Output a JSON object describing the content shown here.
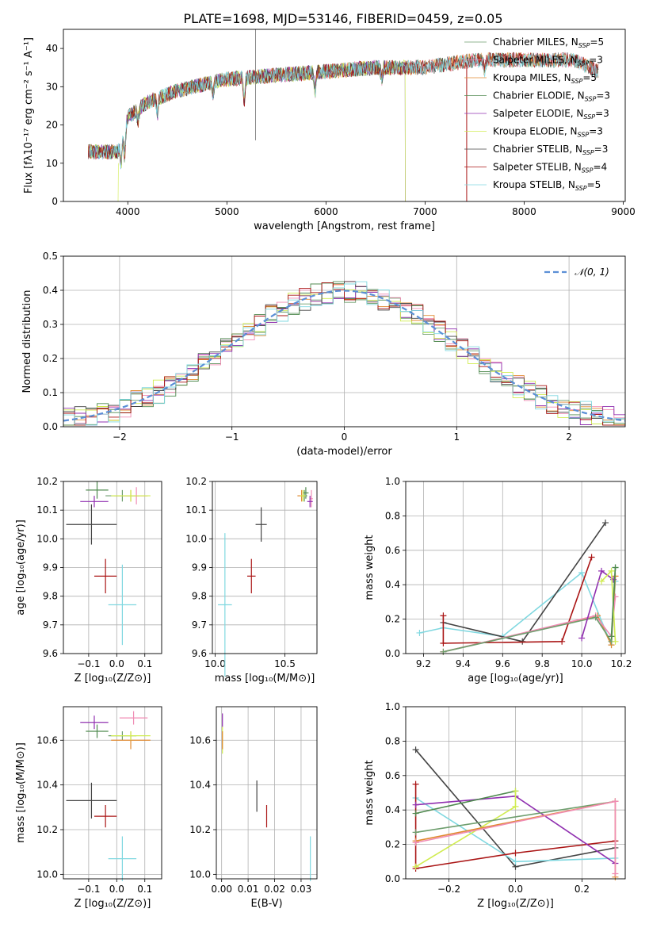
{
  "title": "PLATE=1698, MJD=53146, FIBERID=0459, z=0.05",
  "colors": {
    "chabrier_miles": "#6e9e6e",
    "salpeter_miles": "#f08cb4",
    "kroupa_miles": "#e08a30",
    "chabrier_elodie": "#4f8a4f",
    "salpeter_elodie": "#9030b0",
    "kroupa_elodie": "#d0ec50",
    "chabrier_stelib": "#444444",
    "salpeter_stelib": "#aa1515",
    "kroupa_stelib": "#80d8e0",
    "normal_curve": "#5b8fd6",
    "grid": "#b0b0b0"
  },
  "chart_data": [
    {
      "id": "spectrum",
      "type": "line",
      "xlabel": "wavelength [Angstrom, rest frame]",
      "ylabel": "Flux [fλ10⁻¹⁷ erg cm⁻² s⁻¹ A⁻¹]",
      "xlim": [
        3350,
        9020
      ],
      "ylim": [
        0,
        45
      ],
      "xticks": [
        4000,
        5000,
        6000,
        7000,
        8000,
        9000
      ],
      "yticks": [
        0,
        10,
        20,
        30,
        40
      ],
      "grid": false,
      "legend_position": "top-right",
      "legend": [
        {
          "label": "Chabrier MILES, N",
          "sub": "SSP",
          "tail": "=5",
          "color_key": "chabrier_miles"
        },
        {
          "label": "Salpeter MILES, N",
          "sub": "SSP",
          "tail": "=3",
          "color_key": "salpeter_miles"
        },
        {
          "label": "Kroupa MILES, N",
          "sub": "SSP",
          "tail": "=5",
          "color_key": "kroupa_miles"
        },
        {
          "label": "Chabrier ELODIE, N",
          "sub": "SSP",
          "tail": "=3",
          "color_key": "chabrier_elodie"
        },
        {
          "label": "Salpeter ELODIE, N",
          "sub": "SSP",
          "tail": "=3",
          "color_key": "salpeter_elodie"
        },
        {
          "label": "Kroupa ELODIE, N",
          "sub": "SSP",
          "tail": "=3",
          "color_key": "kroupa_elodie"
        },
        {
          "label": "Chabrier STELIB, N",
          "sub": "SSP",
          "tail": "=3",
          "color_key": "chabrier_stelib"
        },
        {
          "label": "Salpeter STELIB, N",
          "sub": "SSP",
          "tail": "=4",
          "color_key": "salpeter_stelib"
        },
        {
          "label": "Kroupa STELIB, N",
          "sub": "SSP",
          "tail": "=5",
          "color_key": "kroupa_stelib"
        }
      ],
      "continuum": [
        [
          3600,
          13
        ],
        [
          3800,
          13
        ],
        [
          3900,
          13
        ],
        [
          4000,
          22
        ],
        [
          4200,
          26
        ],
        [
          4500,
          29
        ],
        [
          5000,
          32
        ],
        [
          5500,
          33
        ],
        [
          6000,
          34
        ],
        [
          6500,
          35
        ],
        [
          7000,
          35
        ],
        [
          7500,
          37
        ],
        [
          8000,
          37
        ],
        [
          8500,
          37
        ],
        [
          8750,
          34
        ]
      ],
      "dips": [
        [
          3933,
          6
        ],
        [
          3968,
          7
        ],
        [
          4102,
          3
        ],
        [
          4300,
          4
        ],
        [
          4861,
          3
        ],
        [
          5175,
          6
        ],
        [
          5890,
          5
        ],
        [
          6563,
          3
        ],
        [
          7600,
          3
        ]
      ]
    },
    {
      "id": "residuals",
      "type": "histogram",
      "xlabel": "(data-model)/error",
      "ylabel": "Normed distribution",
      "xlim": [
        -2.5,
        2.5
      ],
      "ylim": [
        0,
        0.5
      ],
      "xticks": [
        -2,
        -1,
        0,
        1,
        2
      ],
      "yticks": [
        0.0,
        0.1,
        0.2,
        0.3,
        0.4,
        0.5
      ],
      "grid": true,
      "legend_position": "top-right",
      "legend_label": "𝒩(0, 1)",
      "bin_width": 0.1,
      "series_color_keys": [
        "chabrier_miles",
        "salpeter_miles",
        "kroupa_miles",
        "chabrier_elodie",
        "salpeter_elodie",
        "kroupa_elodie",
        "chabrier_stelib",
        "salpeter_stelib",
        "kroupa_stelib"
      ]
    },
    {
      "id": "age_vs_Z",
      "type": "scatter",
      "xlabel": "Z [log₁₀(Z/Z⊙)]",
      "ylabel": "age  [log₁₀(age/yr)]",
      "xlim": [
        -0.19,
        0.16
      ],
      "ylim": [
        9.6,
        10.2
      ],
      "xticks": [
        -0.1,
        0.0,
        0.1
      ],
      "yticks": [
        9.6,
        9.7,
        9.8,
        9.9,
        10.0,
        10.1,
        10.2
      ],
      "grid": true,
      "points": [
        {
          "c": "chabrier_miles",
          "x": 0.02,
          "y": 10.15,
          "xe": 0.06,
          "ye": 0.02
        },
        {
          "c": "salpeter_miles",
          "x": 0.07,
          "y": 10.15,
          "xe": 0.04,
          "ye": 0.03
        },
        {
          "c": "kroupa_miles",
          "x": 0.05,
          "y": 10.15,
          "xe": 0.06,
          "ye": 0.02
        },
        {
          "c": "chabrier_elodie",
          "x": -0.07,
          "y": 10.17,
          "xe": 0.04,
          "ye": 0.03
        },
        {
          "c": "salpeter_elodie",
          "x": -0.08,
          "y": 10.13,
          "xe": 0.05,
          "ye": 0.02
        },
        {
          "c": "kroupa_elodie",
          "x": 0.05,
          "y": 10.15,
          "xe": 0.07,
          "ye": 0.02
        },
        {
          "c": "chabrier_stelib",
          "x": -0.09,
          "y": 10.05,
          "xe": 0.09,
          "ye": 0.07
        },
        {
          "c": "salpeter_stelib",
          "x": -0.04,
          "y": 9.87,
          "xe": 0.04,
          "ye": 0.06
        },
        {
          "c": "kroupa_stelib",
          "x": 0.02,
          "y": 9.77,
          "xe": 0.05,
          "ye": 0.14
        }
      ]
    },
    {
      "id": "age_vs_mass",
      "type": "scatter",
      "xlabel": "mass [log₁₀(M/M⊙)]",
      "ylabel": "",
      "xlim": [
        9.98,
        10.73
      ],
      "ylim": [
        9.6,
        10.2
      ],
      "xticks": [
        10.0,
        10.5
      ],
      "yticks": [
        9.6,
        9.7,
        9.8,
        9.9,
        10.0,
        10.1,
        10.2
      ],
      "grid": true,
      "points": [
        {
          "c": "chabrier_miles",
          "x": 10.64,
          "y": 10.15,
          "xe": 0.02,
          "ye": 0.02
        },
        {
          "c": "salpeter_miles",
          "x": 10.69,
          "y": 10.14,
          "xe": 0.01,
          "ye": 0.03
        },
        {
          "c": "kroupa_miles",
          "x": 10.62,
          "y": 10.15,
          "xe": 0.03,
          "ye": 0.02
        },
        {
          "c": "chabrier_elodie",
          "x": 10.65,
          "y": 10.16,
          "xe": 0.02,
          "ye": 0.02
        },
        {
          "c": "salpeter_elodie",
          "x": 10.68,
          "y": 10.13,
          "xe": 0.02,
          "ye": 0.02
        },
        {
          "c": "kroupa_elodie",
          "x": 10.63,
          "y": 10.15,
          "xe": 0.02,
          "ye": 0.02
        },
        {
          "c": "chabrier_stelib",
          "x": 10.33,
          "y": 10.05,
          "xe": 0.04,
          "ye": 0.06
        },
        {
          "c": "salpeter_stelib",
          "x": 10.26,
          "y": 9.87,
          "xe": 0.03,
          "ye": 0.06
        },
        {
          "c": "kroupa_stelib",
          "x": 10.07,
          "y": 9.77,
          "xe": 0.05,
          "ye": 0.25
        }
      ]
    },
    {
      "id": "weight_vs_age",
      "type": "line",
      "xlabel": "age  [log₁₀(age/yr)]",
      "ylabel": "mass weight",
      "xlim": [
        9.11,
        10.22
      ],
      "ylim": [
        0,
        1.0
      ],
      "xticks": [
        9.2,
        9.4,
        9.6,
        9.8,
        10.0,
        10.2
      ],
      "yticks": [
        0.0,
        0.2,
        0.4,
        0.6,
        0.8,
        1.0
      ],
      "grid": true,
      "series": [
        {
          "c": "kroupa_stelib",
          "pts": [
            [
              9.18,
              0.12
            ],
            [
              9.3,
              0.15
            ],
            [
              9.6,
              0.1
            ],
            [
              10.0,
              0.47
            ],
            [
              10.15,
              0.05
            ],
            [
              10.17,
              0.42
            ]
          ]
        },
        {
          "c": "chabrier_stelib",
          "pts": [
            [
              9.3,
              0.18
            ],
            [
              9.7,
              0.07
            ],
            [
              10.12,
              0.76
            ]
          ]
        },
        {
          "c": "salpeter_stelib",
          "pts": [
            [
              9.3,
              0.22
            ],
            [
              9.3,
              0.06
            ],
            [
              9.9,
              0.07
            ],
            [
              10.05,
              0.56
            ]
          ]
        },
        {
          "c": "kroupa_miles",
          "pts": [
            [
              9.3,
              0.01
            ],
            [
              10.08,
              0.22
            ],
            [
              10.15,
              0.05
            ],
            [
              10.17,
              0.45
            ]
          ]
        },
        {
          "c": "salpeter_miles",
          "pts": [
            [
              9.3,
              0.01
            ],
            [
              10.07,
              0.22
            ],
            [
              10.15,
              0.1
            ],
            [
              10.17,
              0.33
            ]
          ]
        },
        {
          "c": "chabrier_miles",
          "pts": [
            [
              9.3,
              0.01
            ],
            [
              10.07,
              0.21
            ],
            [
              10.15,
              0.07
            ],
            [
              10.17,
              0.5
            ]
          ]
        },
        {
          "c": "salpeter_elodie",
          "pts": [
            [
              10.0,
              0.09
            ],
            [
              10.1,
              0.48
            ],
            [
              10.16,
              0.43
            ]
          ]
        },
        {
          "c": "kroupa_elodie",
          "pts": [
            [
              10.1,
              0.42
            ],
            [
              10.15,
              0.48
            ],
            [
              10.17,
              0.07
            ]
          ]
        },
        {
          "c": "chabrier_elodie",
          "pts": [
            [
              10.15,
              0.1
            ],
            [
              10.17,
              0.5
            ]
          ]
        }
      ]
    },
    {
      "id": "mass_vs_Z",
      "type": "scatter",
      "xlabel": "Z [log₁₀(Z/Z⊙)]",
      "ylabel": "mass [log₁₀(M/M⊙)]",
      "xlim": [
        -0.19,
        0.16
      ],
      "ylim": [
        9.98,
        10.75
      ],
      "xticks": [
        -0.1,
        0.0,
        0.1
      ],
      "yticks": [
        10.0,
        10.2,
        10.4,
        10.6
      ],
      "grid": true,
      "points": [
        {
          "c": "chabrier_miles",
          "x": 0.02,
          "y": 10.62,
          "xe": 0.05,
          "ye": 0.02
        },
        {
          "c": "salpeter_miles",
          "x": 0.06,
          "y": 10.7,
          "xe": 0.05,
          "ye": 0.03
        },
        {
          "c": "kroupa_miles",
          "x": 0.05,
          "y": 10.6,
          "xe": 0.07,
          "ye": 0.04
        },
        {
          "c": "chabrier_elodie",
          "x": -0.07,
          "y": 10.64,
          "xe": 0.04,
          "ye": 0.03
        },
        {
          "c": "salpeter_elodie",
          "x": -0.08,
          "y": 10.68,
          "xe": 0.05,
          "ye": 0.03
        },
        {
          "c": "kroupa_elodie",
          "x": 0.05,
          "y": 10.62,
          "xe": 0.07,
          "ye": 0.02
        },
        {
          "c": "chabrier_stelib",
          "x": -0.09,
          "y": 10.33,
          "xe": 0.09,
          "ye": 0.08
        },
        {
          "c": "salpeter_stelib",
          "x": -0.04,
          "y": 10.26,
          "xe": 0.04,
          "ye": 0.05
        },
        {
          "c": "kroupa_stelib",
          "x": 0.02,
          "y": 10.07,
          "xe": 0.05,
          "ye": 0.1
        }
      ]
    },
    {
      "id": "mass_vs_ebv",
      "type": "scatter",
      "xlabel": "E(B-V)",
      "ylabel": "",
      "xlim": [
        -0.002,
        0.036
      ],
      "ylim": [
        9.98,
        10.75
      ],
      "xticks": [
        0.0,
        0.01,
        0.02,
        0.03
      ],
      "xticklabels": [
        "0.00",
        "0.01",
        "0.02",
        "0.03"
      ],
      "yticks": [
        10.0,
        10.2,
        10.4,
        10.6
      ],
      "grid": true,
      "points": [
        {
          "c": "salpeter_elodie",
          "x": 0.0003,
          "y": 10.69,
          "xe": 0,
          "ye": 0.03
        },
        {
          "c": "kroupa_elodie",
          "x": 0.0003,
          "y": 10.6,
          "xe": 0,
          "ye": 0.06
        },
        {
          "c": "kroupa_miles",
          "x": 0.0003,
          "y": 10.6,
          "xe": 0,
          "ye": 0.04
        },
        {
          "c": "chabrier_stelib",
          "x": 0.0133,
          "y": 10.35,
          "xe": 0,
          "ye": 0.07
        },
        {
          "c": "salpeter_stelib",
          "x": 0.017,
          "y": 10.26,
          "xe": 0,
          "ye": 0.05
        },
        {
          "c": "kroupa_stelib",
          "x": 0.0335,
          "y": 10.07,
          "xe": 0,
          "ye": 0.1
        }
      ]
    },
    {
      "id": "weight_vs_Z",
      "type": "line",
      "xlabel": "Z [log₁₀(Z/Z⊙)]",
      "ylabel": "mass weight",
      "xlim": [
        -0.33,
        0.33
      ],
      "ylim": [
        0,
        1.0
      ],
      "xticks": [
        -0.2,
        0.0,
        0.2
      ],
      "yticks": [
        0.0,
        0.2,
        0.4,
        0.6,
        0.8,
        1.0
      ],
      "grid": true,
      "series": [
        {
          "c": "chabrier_stelib",
          "pts": [
            [
              -0.3,
              0.75
            ],
            [
              0.0,
              0.07
            ],
            [
              0.3,
              0.18
            ]
          ]
        },
        {
          "c": "kroupa_stelib",
          "pts": [
            [
              -0.3,
              0.47
            ],
            [
              0.0,
              0.1
            ],
            [
              0.3,
              0.12
            ]
          ]
        },
        {
          "c": "salpeter_stelib",
          "pts": [
            [
              -0.3,
              0.55
            ],
            [
              -0.3,
              0.06
            ],
            [
              0.0,
              0.15
            ],
            [
              0.3,
              0.22
            ]
          ]
        },
        {
          "c": "salpeter_elodie",
          "pts": [
            [
              -0.3,
              0.43
            ],
            [
              0.0,
              0.48
            ],
            [
              0.3,
              0.09
            ]
          ]
        },
        {
          "c": "chabrier_elodie",
          "pts": [
            [
              -0.3,
              0.38
            ],
            [
              0.0,
              0.51
            ]
          ]
        },
        {
          "c": "kroupa_elodie",
          "pts": [
            [
              -0.3,
              0.07
            ],
            [
              0.0,
              0.42
            ],
            [
              0.0,
              0.51
            ]
          ]
        },
        {
          "c": "chabrier_miles",
          "pts": [
            [
              -0.3,
              0.27
            ],
            [
              0.3,
              0.45
            ]
          ]
        },
        {
          "c": "kroupa_miles",
          "pts": [
            [
              -0.3,
              0.22
            ],
            [
              0.3,
              0.45
            ],
            [
              0.3,
              0.01
            ]
          ]
        },
        {
          "c": "salpeter_miles",
          "pts": [
            [
              -0.3,
              0.21
            ],
            [
              0.3,
              0.45
            ],
            [
              0.3,
              0.03
            ]
          ]
        }
      ]
    }
  ]
}
